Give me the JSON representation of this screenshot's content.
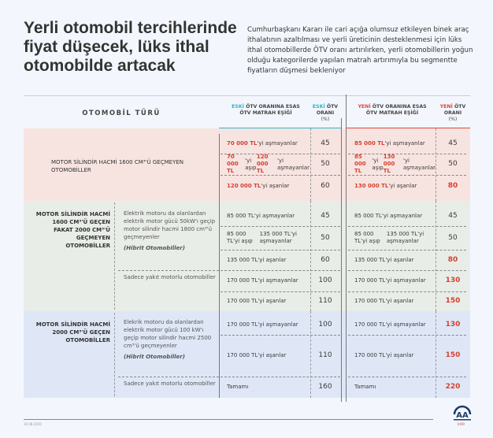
{
  "title": "Yerli otomobil tercihlerinde fiyat düşecek, lüks ithal otomobilde artacak",
  "description": "Cumhurbaşkanı Kararı ile cari açığa olumsuz etkileyen binek araç ithalatının azaltılması ve yerli üreticinin desteklenmesi için lüks ithal otomobillerde ÖTV oranı artırılırken, yerli otomobillerin yoğun olduğu kategorilerde yapılan matrah artırımıyla bu segmentte fiyatların düşmesi bekleniyor",
  "header": {
    "type": "OTOMOBİL TÜRÜ",
    "eski": "ESKİ",
    "yeni": "YENİ",
    "eski_threshold": " ÖTV ORANINA ESAS ÖTV MATRAH EŞİĞİ",
    "eski_rate": " ÖTV ORANI",
    "yeni_threshold": " ÖTV ORANINA ESAS ÖTV MATRAH EŞİĞİ",
    "yeni_rate": " ÖTV ORANI",
    "pct": "(%)"
  },
  "colors": {
    "eski_accent": "#2fb2c9",
    "yeni_accent": "#e0453c",
    "section1": "#f7e4e1",
    "section2": "#e9ede8",
    "section3": "#dfe7f7",
    "highlight": "#d8402f"
  },
  "sections": [
    {
      "type": "MOTOR SİLİNDİR HACMİ 1600 CM³'Ü GEÇMEYEN OTOMOBİLLER",
      "subtypes": [],
      "rows": [
        {
          "eski": [
            [
              "70 000 TL",
              1
            ],
            [
              "'yi aşmayanlar",
              0
            ]
          ],
          "eski_rate": "45",
          "yeni": [
            [
              "85 000 TL",
              1
            ],
            [
              "'yi aşmayanlar",
              0
            ]
          ],
          "yeni_rate": "45",
          "yeni_high": false
        },
        {
          "eski": [
            [
              "70 000 TL",
              1
            ],
            [
              "'yi aşıp\n",
              0
            ],
            [
              "120 000 TL",
              1
            ],
            [
              "'yi aşmayanlar",
              0
            ]
          ],
          "eski_rate": "50",
          "yeni": [
            [
              "85 000 TL",
              1
            ],
            [
              "'yi aşıp\n",
              0
            ],
            [
              "130 000 TL",
              1
            ],
            [
              "'yi aşmayanlar",
              0
            ]
          ],
          "yeni_rate": "50",
          "yeni_high": false
        },
        {
          "eski": [
            [
              "120 000 TL",
              1
            ],
            [
              "'yi aşanlar",
              0
            ]
          ],
          "eski_rate": "60",
          "yeni": [
            [
              "130 000 TL",
              1
            ],
            [
              "'yi aşanlar",
              0
            ]
          ],
          "yeni_rate": "80",
          "yeni_high": true
        }
      ]
    },
    {
      "type": "MOTOR SİLİNDİR HACMİ 1600 CM³'Ü GEÇEN FAKAT 2000 CM³'Ü GEÇMEYEN OTOMOBİLLER",
      "subtypes": [
        {
          "text": "Elektrik motoru da olanlardan elektrik motor gücü 50kW'ı geçip motor silindir hacmi 1800 cm³'ü geçmeyenler",
          "note": "(Hibrit Otomobiller)"
        },
        {
          "text": "Sadece yakıt motorlu otomobiller",
          "note": ""
        }
      ],
      "rows": [
        {
          "eski": [
            [
              "85 000 TL'yi aşmayanlar",
              0
            ]
          ],
          "eski_rate": "45",
          "yeni": [
            [
              "85 000 TL'yi aşmayanlar",
              0
            ]
          ],
          "yeni_rate": "45",
          "yeni_high": false
        },
        {
          "eski": [
            [
              "85 000 TL'yi aşıp\n135 000 TL'yi aşmayanlar",
              0
            ]
          ],
          "eski_rate": "50",
          "yeni": [
            [
              "85 000 TL'yi aşıp\n135 000 TL'yi aşmayanlar",
              0
            ]
          ],
          "yeni_rate": "50",
          "yeni_high": false
        },
        {
          "eski": [
            [
              "135 000 TL'yi aşanlar",
              0
            ]
          ],
          "eski_rate": "60",
          "yeni": [
            [
              "135 000 TL'yi aşanlar",
              0
            ]
          ],
          "yeni_rate": "80",
          "yeni_high": true
        },
        {
          "eski": [
            [
              "170 000 TL'yi aşmayanlar",
              0
            ]
          ],
          "eski_rate": "100",
          "yeni": [
            [
              "170 000 TL'yi aşmayanlar",
              0
            ]
          ],
          "yeni_rate": "130",
          "yeni_high": true
        },
        {
          "eski": [
            [
              "170 000 TL'yi aşanlar",
              0
            ]
          ],
          "eski_rate": "110",
          "yeni": [
            [
              "170 000 TL'yi aşanlar",
              0
            ]
          ],
          "yeni_rate": "150",
          "yeni_high": true
        }
      ]
    },
    {
      "type": "MOTOR SİLİNDİR HACMİ 2000 CM³'Ü GEÇEN OTOMOBİLLER",
      "subtypes": [
        {
          "text": "Elekrik motoru da olanlardan elektrik motor gücü 100 kW'ı geçip motor silindir hacmi 2500 cm³'ü geçmeyenler",
          "note": "(Hibrit Otomobiller)"
        },
        {
          "text": "Sadece yakıt motorlu otomobiller",
          "note": ""
        }
      ],
      "rows": [
        {
          "eski": [
            [
              "170 000 TL'yi aşmayanlar",
              0
            ]
          ],
          "eski_rate": "100",
          "yeni": [
            [
              "170 000 TL'yi aşmayanlar",
              0
            ]
          ],
          "yeni_rate": "130",
          "yeni_high": true
        },
        {
          "eski": [
            [
              "170 000 TL'yi aşanlar",
              0
            ]
          ],
          "eski_rate": "110",
          "yeni": [
            [
              "170 000 TL'yi aşanlar",
              0
            ]
          ],
          "yeni_rate": "150",
          "yeni_high": true
        },
        {
          "eski": [
            [
              "Tamamı",
              0
            ]
          ],
          "eski_rate": "160",
          "yeni": [
            [
              "Tamamı",
              0
            ]
          ],
          "yeni_rate": "220",
          "yeni_high": true
        }
      ]
    }
  ],
  "footer": {
    "date": "30.08.2020",
    "logo_text": "AA ANADOLU AJANSI 100"
  }
}
